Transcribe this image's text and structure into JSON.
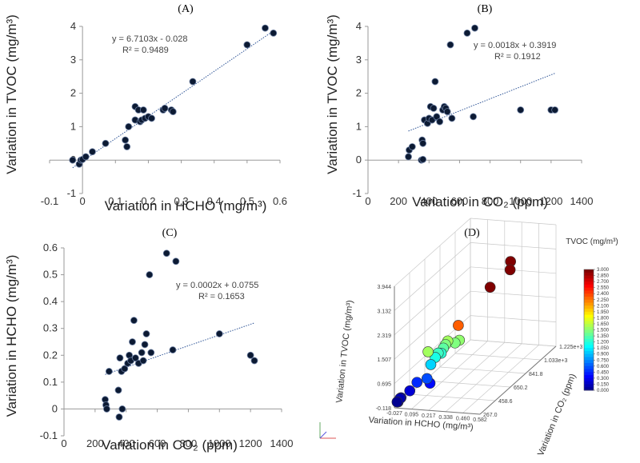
{
  "chart_data": [
    {
      "panel": "(A)",
      "type": "scatter",
      "xlabel": "Variation in HCHO (mg/m³)",
      "ylabel": "Variation in TVOC (mg/m³)",
      "xlim": [
        -0.1,
        0.6
      ],
      "ylim": [
        -1,
        4
      ],
      "xticks": [
        "-0.1",
        "0",
        "0.1",
        "0.2",
        "0.3",
        "0.4",
        "0.5",
        "0.6"
      ],
      "yticks": [
        "-1",
        "0",
        "1",
        "2",
        "3",
        "4"
      ],
      "trendline": {
        "equation": "y = 6.7103x - 0.028",
        "r2": "R² = 0.9489",
        "slope": 6.7103,
        "intercept": -0.028,
        "x_range": [
          -0.03,
          0.58
        ]
      },
      "points": [
        [
          -0.03,
          0.0
        ],
        [
          -0.01,
          -0.12
        ],
        [
          -0.005,
          0.0
        ],
        [
          0.0,
          0.02
        ],
        [
          0.01,
          0.1
        ],
        [
          0.03,
          0.25
        ],
        [
          0.07,
          0.5
        ],
        [
          0.13,
          0.6
        ],
        [
          0.135,
          0.4
        ],
        [
          0.14,
          1.0
        ],
        [
          0.16,
          1.2
        ],
        [
          0.16,
          1.6
        ],
        [
          0.17,
          1.5
        ],
        [
          0.175,
          1.15
        ],
        [
          0.18,
          1.2
        ],
        [
          0.185,
          1.5
        ],
        [
          0.19,
          1.25
        ],
        [
          0.2,
          1.3
        ],
        [
          0.21,
          1.25
        ],
        [
          0.245,
          1.5
        ],
        [
          0.25,
          1.55
        ],
        [
          0.27,
          1.5
        ],
        [
          0.275,
          1.45
        ],
        [
          0.335,
          2.35
        ],
        [
          0.5,
          3.45
        ],
        [
          0.555,
          3.95
        ],
        [
          0.58,
          3.8
        ]
      ]
    },
    {
      "panel": "(B)",
      "type": "scatter",
      "xlabel": "Variation in CO₂ (ppm)",
      "ylabel": "Variation in TVOC (mg/m³)",
      "xlim": [
        0,
        1400
      ],
      "ylim": [
        -1,
        4
      ],
      "xticks": [
        "0",
        "200",
        "400",
        "600",
        "800",
        "1000",
        "1200",
        "1400"
      ],
      "yticks": [
        "-1",
        "0",
        "1",
        "2",
        "3",
        "4"
      ],
      "trendline": {
        "equation": "y = 0.0018x + 0.3919",
        "r2": "R² = 0.1912",
        "slope": 0.0018,
        "intercept": 0.3919,
        "x_range": [
          265,
          1225
        ]
      },
      "points": [
        [
          265,
          0.1
        ],
        [
          270,
          0.3
        ],
        [
          290,
          0.4
        ],
        [
          350,
          0.0
        ],
        [
          355,
          0.6
        ],
        [
          360,
          0.5
        ],
        [
          360,
          0.02
        ],
        [
          370,
          1.2
        ],
        [
          390,
          1.1
        ],
        [
          400,
          1.25
        ],
        [
          410,
          1.6
        ],
        [
          420,
          1.2
        ],
        [
          430,
          1.55
        ],
        [
          440,
          2.35
        ],
        [
          450,
          1.3
        ],
        [
          470,
          1.15
        ],
        [
          490,
          1.5
        ],
        [
          500,
          1.6
        ],
        [
          510,
          1.55
        ],
        [
          520,
          1.45
        ],
        [
          540,
          3.45
        ],
        [
          550,
          1.25
        ],
        [
          650,
          3.8
        ],
        [
          700,
          3.95
        ],
        [
          690,
          1.3
        ],
        [
          1000,
          1.5
        ],
        [
          1200,
          1.5
        ],
        [
          1225,
          1.5
        ]
      ]
    },
    {
      "panel": "(C)",
      "type": "scatter",
      "xlabel": "Variation in CO₂ (ppm)",
      "ylabel": "Variation in HCHO (mg/m³)",
      "xlim": [
        0,
        1400
      ],
      "ylim": [
        -0.1,
        0.6
      ],
      "xticks": [
        "0",
        "200",
        "400",
        "600",
        "800",
        "1000",
        "1200",
        "1400"
      ],
      "yticks": [
        "-0.1",
        "0",
        "0.1",
        "0.2",
        "0.3",
        "0.4",
        "0.5",
        "0.6"
      ],
      "trendline": {
        "equation": "y = 0.0002x + 0.0755",
        "r2": "R² = 0.1653",
        "slope": 0.0002,
        "intercept": 0.0755,
        "x_range": [
          265,
          1225
        ]
      },
      "points": [
        [
          265,
          0.035
        ],
        [
          270,
          0.015
        ],
        [
          275,
          0.0
        ],
        [
          290,
          0.14
        ],
        [
          350,
          0.07
        ],
        [
          355,
          -0.03
        ],
        [
          360,
          0.19
        ],
        [
          370,
          0.14
        ],
        [
          375,
          0.0
        ],
        [
          390,
          0.15
        ],
        [
          410,
          0.17
        ],
        [
          420,
          0.2
        ],
        [
          430,
          0.18
        ],
        [
          440,
          0.25
        ],
        [
          450,
          0.33
        ],
        [
          460,
          0.19
        ],
        [
          480,
          0.17
        ],
        [
          500,
          0.21
        ],
        [
          510,
          0.18
        ],
        [
          520,
          0.24
        ],
        [
          530,
          0.28
        ],
        [
          550,
          0.5
        ],
        [
          560,
          0.21
        ],
        [
          660,
          0.58
        ],
        [
          700,
          0.22
        ],
        [
          720,
          0.55
        ],
        [
          1000,
          0.28
        ],
        [
          1200,
          0.2
        ],
        [
          1225,
          0.18
        ]
      ]
    },
    {
      "panel": "(D)",
      "type": "scatter3d",
      "xlabel": "Variation in HCHO (mg/m³)",
      "ylabel": "Variation in CO₂ (ppm)",
      "zlabel": "Variation in TVOC (mg/m³)",
      "xticks": [
        "-0.027",
        "0.095",
        "0.217",
        "0.338",
        "0.460",
        "0.582"
      ],
      "yticks": [
        "267.0",
        "458.6",
        "650.2",
        "841.8",
        "1.033e+3",
        "1.225e+3"
      ],
      "zticks": [
        "-0.118",
        "0.695",
        "1.507",
        "2.319",
        "3.132",
        "3.944"
      ],
      "colorbar": {
        "title": "TVOC (mg/m³)",
        "ticks": [
          "3.000",
          "2.850",
          "2.700",
          "2.550",
          "2.400",
          "2.250",
          "2.100",
          "1.950",
          "1.800",
          "1.650",
          "1.500",
          "1.350",
          "1.200",
          "1.050",
          "0.900",
          "0.750",
          "0.600",
          "0.450",
          "0.300",
          "0.150",
          "0.000"
        ]
      },
      "points": [
        [
          -0.02,
          300,
          0.0
        ],
        [
          -0.015,
          280,
          0.05
        ],
        [
          -0.01,
          320,
          0.1
        ],
        [
          0.0,
          290,
          0.15
        ],
        [
          0.03,
          360,
          0.25
        ],
        [
          0.07,
          380,
          0.5
        ],
        [
          0.13,
          400,
          0.6
        ],
        [
          0.14,
          420,
          0.4
        ],
        [
          0.14,
          430,
          1.0
        ],
        [
          0.16,
          450,
          1.2
        ],
        [
          0.17,
          470,
          1.3
        ],
        [
          0.18,
          490,
          1.25
        ],
        [
          0.19,
          500,
          1.4
        ],
        [
          0.2,
          510,
          1.5
        ],
        [
          0.21,
          520,
          1.6
        ],
        [
          0.16,
          360,
          1.6
        ],
        [
          0.25,
          540,
          1.5
        ],
        [
          0.27,
          560,
          1.55
        ],
        [
          0.33,
          440,
          2.35
        ],
        [
          0.5,
          540,
          3.45
        ],
        [
          0.555,
          700,
          3.95
        ],
        [
          0.58,
          650,
          3.8
        ]
      ]
    }
  ]
}
